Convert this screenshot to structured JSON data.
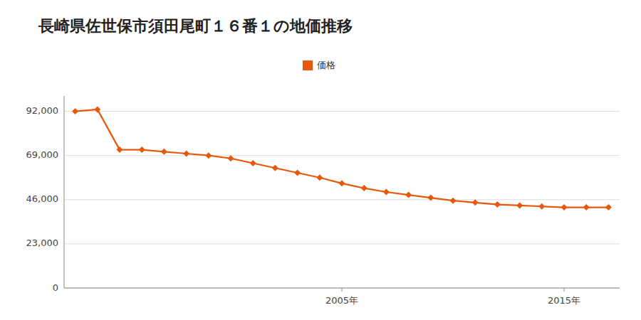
{
  "chart_data": {
    "type": "line",
    "title": "長崎県佐世保市須田尾町１６番１の地価推移",
    "x": [
      1993,
      1994,
      1995,
      1996,
      1997,
      1998,
      1999,
      2000,
      2001,
      2002,
      2003,
      2004,
      2005,
      2006,
      2007,
      2008,
      2009,
      2010,
      2011,
      2012,
      2013,
      2014,
      2015,
      2016,
      2017
    ],
    "series": [
      {
        "name": "価格",
        "color": "#E8580A",
        "marker": "diamond",
        "values": [
          92000,
          93000,
          72000,
          72000,
          71000,
          70000,
          69000,
          67500,
          65000,
          62500,
          60000,
          57500,
          54500,
          52000,
          50000,
          48500,
          47000,
          45500,
          44500,
          43500,
          43000,
          42500,
          42000,
          42000,
          42000
        ]
      }
    ],
    "xlim": [
      1992.5,
      2017.5
    ],
    "xticks": [
      {
        "value": 2005,
        "label": "2005年"
      },
      {
        "value": 2015,
        "label": "2015年"
      }
    ],
    "ylim": [
      0,
      100000
    ],
    "yticks": [
      0,
      {
        "value": 23000,
        "label": "23,000"
      },
      {
        "value": 46000,
        "label": "46,000"
      },
      {
        "value": 69000,
        "label": "69,000"
      },
      {
        "value": 92000,
        "label": "92,000"
      }
    ],
    "grid": true,
    "legend": "top"
  }
}
